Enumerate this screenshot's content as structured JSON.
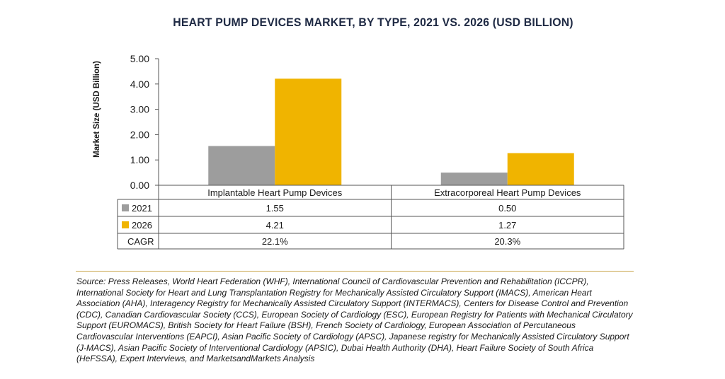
{
  "chart_data": {
    "type": "bar",
    "title": "HEART PUMP DEVICES MARKET, BY TYPE, 2021 VS. 2026 (USD BILLION)",
    "ylabel": "Market Size (USD Billion)",
    "xlabel": "",
    "ylim": [
      0,
      5
    ],
    "yticks": [
      "0.00",
      "1.00",
      "2.00",
      "3.00",
      "4.00",
      "5.00"
    ],
    "grid": false,
    "categories": [
      "Implantable Heart Pump Devices",
      "Extracorporeal Heart Pump Devices"
    ],
    "series": [
      {
        "name": "2021",
        "values": [
          1.55,
          0.5
        ],
        "labels": [
          "1.55",
          "0.50"
        ],
        "color": "#9d9d9d"
      },
      {
        "name": "2026",
        "values": [
          4.21,
          1.27
        ],
        "labels": [
          "4.21",
          "1.27"
        ],
        "color": "#f0b400"
      }
    ],
    "table_rows": [
      {
        "label": "CAGR",
        "values": [
          "22.1%",
          "20.3%"
        ]
      }
    ]
  },
  "source": "Source: Press Releases, World Heart Federation (WHF), International Council of Cardiovascular Prevention and Rehabilitation (ICCPR), International Society for Heart and Lung Transplantation Registry for Mechanically Assisted Circulatory Support (IMACS), American Heart Association (AHA), Interagency Registry for Mechanically Assisted Circulatory Support (INTERMACS), Centers for Disease Control and Prevention (CDC), Canadian Cardiovascular Society (CCS), European Society of Cardiology (ESC), European Registry for Patients with Mechanical Circulatory Support (EUROMACS), British Society for Heart Failure (BSH), French Society of Cardiology, European Association of Percutaneous Cardiovascular Interventions (EAPCI), Asian Pacific Society of Cardiology (APSC), Japanese registry for Mechanically Assisted Circulatory Support (J-MACS), Asian Pacific Society of Interventional Cardiology (APSIC), Dubai Health Authority (DHA), Heart Failure Society of South Africa (HeFSSA), Expert Interviews, and MarketsandMarkets Analysis"
}
